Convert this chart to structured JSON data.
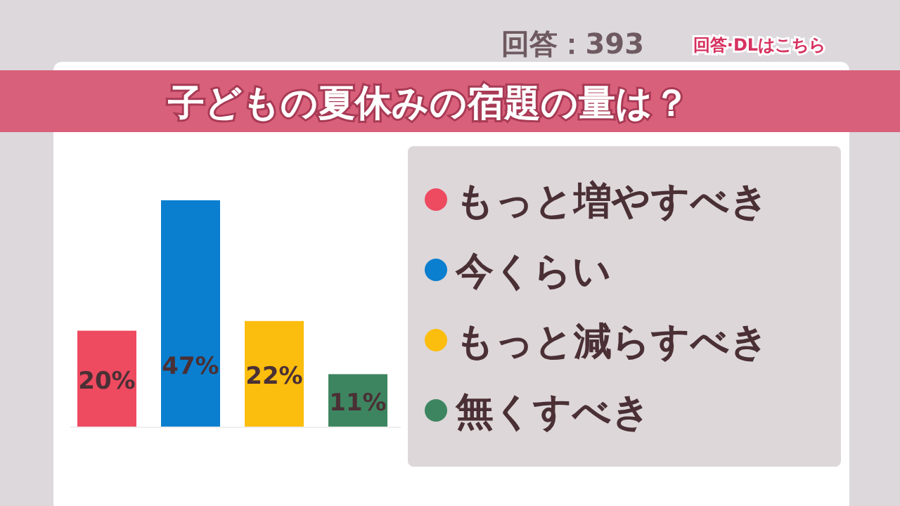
{
  "chart_data": {
    "type": "bar",
    "title": "子どもの夏休みの宿題の量は？",
    "annotations": [
      "回答：393",
      "回答·DLはこちら"
    ],
    "categories": [
      null,
      null,
      null,
      null
    ],
    "stacked": true,
    "series": [
      {
        "name": "もっと増やすべき",
        "color": "#ee4a60",
        "values": [
          20,
          null,
          null,
          null
        ],
        "value_labels": [
          "20%",
          null,
          null,
          null
        ]
      },
      {
        "name": "今くらい",
        "color": "#0a7fcf",
        "values": [
          null,
          47,
          null,
          null
        ],
        "value_labels": [
          null,
          "47%",
          null,
          null
        ]
      },
      {
        "name": "もっと減らすべき",
        "color": "#fbbd0e",
        "values": [
          null,
          null,
          22,
          null
        ],
        "value_labels": [
          null,
          null,
          "22%",
          null
        ]
      },
      {
        "name": "無くすべき",
        "color": "#3d8560",
        "values": [
          null,
          null,
          null,
          11
        ],
        "value_labels": [
          null,
          null,
          null,
          "11%"
        ]
      }
    ],
    "legend": "right"
  }
}
